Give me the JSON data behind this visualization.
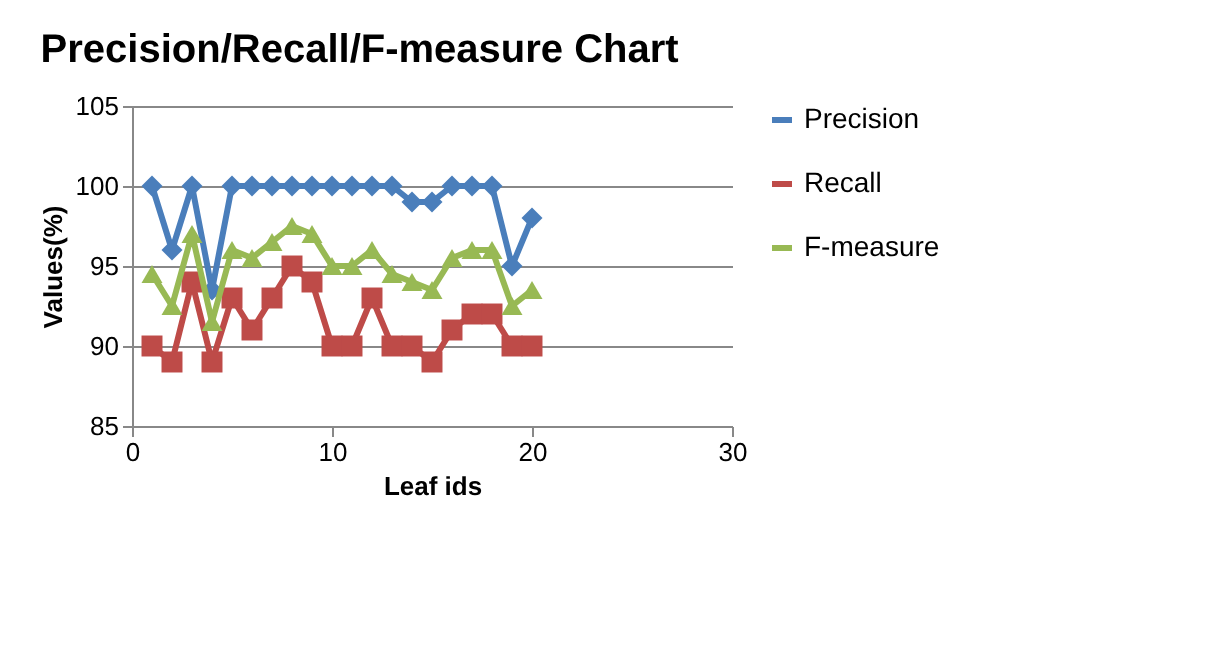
{
  "chart_data": {
    "type": "line",
    "title": "Precision/Recall/F-measure Chart",
    "xlabel": "Leaf ids",
    "ylabel": "Values(%)",
    "x": [
      1,
      2,
      3,
      4,
      5,
      6,
      7,
      8,
      9,
      10,
      11,
      12,
      13,
      14,
      15,
      16,
      17,
      18,
      19,
      20
    ],
    "series": [
      {
        "name": "Precision",
        "color": "#4a7ebb",
        "marker": "diamond",
        "values": [
          100,
          96,
          100,
          93.5,
          100,
          100,
          100,
          100,
          100,
          100,
          100,
          100,
          100,
          99,
          99,
          100,
          100,
          100,
          95,
          98
        ]
      },
      {
        "name": "Recall",
        "color": "#be4b48",
        "marker": "square",
        "values": [
          90,
          89,
          94,
          89,
          93,
          91,
          93,
          95,
          94,
          90,
          90,
          93,
          90,
          90,
          89,
          91,
          92,
          92,
          90,
          90
        ]
      },
      {
        "name": "F-measure",
        "color": "#98b954",
        "marker": "triangle",
        "values": [
          94.5,
          92.5,
          97,
          91.5,
          96,
          95.5,
          96.5,
          97.5,
          97,
          95,
          95,
          96,
          94.5,
          94,
          93.5,
          95.5,
          96,
          96,
          92.5,
          93.5
        ]
      }
    ],
    "xlim": [
      0,
      30
    ],
    "xticks": [
      0,
      10,
      20,
      30
    ],
    "ylim": [
      85,
      105
    ],
    "yticks": [
      85,
      90,
      95,
      100,
      105
    ],
    "grid": "y",
    "legend": "right"
  }
}
